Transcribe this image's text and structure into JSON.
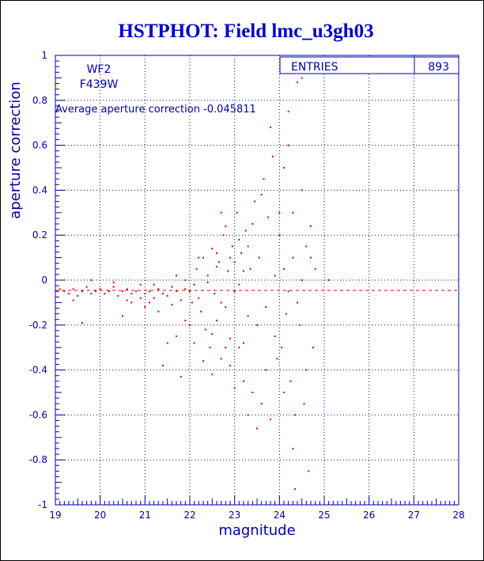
{
  "chart_data": {
    "type": "scatter",
    "title": "HSTPHOT: Field lmc_u3gh03",
    "xlabel": "magnitude",
    "ylabel": "aperture correction",
    "xlim": [
      19,
      28
    ],
    "ylim": [
      -1,
      1
    ],
    "x_ticks": [
      "19",
      "20",
      "21",
      "22",
      "23",
      "24",
      "25",
      "26",
      "27",
      "28"
    ],
    "y_ticks": [
      "-1",
      "-0.8",
      "-0.6",
      "-0.4",
      "-0.2",
      "0",
      "0.2",
      "0.4",
      "0.6",
      "0.8",
      "1"
    ],
    "grid": true,
    "annotations": {
      "chip": "WF2",
      "filter": "F439W",
      "average_text": "Average aperture correction -0.045811"
    },
    "stats": {
      "entries_label": "ENTRIES",
      "entries_value": "893"
    },
    "average_line_y": -0.045811,
    "colors": {
      "points": "#dd0000",
      "axes": "#0000aa",
      "title": "#0000cc"
    },
    "series": [
      {
        "points": [
          [
            19.1,
            -0.04
          ],
          [
            19.2,
            -0.05
          ],
          [
            19.3,
            -0.06
          ],
          [
            19.4,
            -0.04
          ],
          [
            19.5,
            -0.07
          ],
          [
            19.6,
            -0.05
          ],
          [
            19.7,
            -0.03
          ],
          [
            19.8,
            -0.06
          ],
          [
            19.9,
            -0.05
          ],
          [
            20.0,
            -0.04
          ],
          [
            20.1,
            -0.06
          ],
          [
            20.2,
            -0.05
          ],
          [
            20.3,
            -0.03
          ],
          [
            20.4,
            -0.07
          ],
          [
            20.5,
            -0.05
          ],
          [
            20.6,
            -0.04
          ],
          [
            20.7,
            -0.06
          ],
          [
            20.8,
            -0.05
          ],
          [
            20.9,
            -0.02
          ],
          [
            21.0,
            -0.06
          ],
          [
            21.1,
            -0.05
          ],
          [
            21.2,
            -0.08
          ],
          [
            21.3,
            -0.04
          ],
          [
            21.4,
            -0.06
          ],
          [
            21.5,
            -0.07
          ],
          [
            21.6,
            -0.03
          ],
          [
            21.7,
            -0.05
          ],
          [
            21.8,
            -0.09
          ],
          [
            21.9,
            -0.04
          ],
          [
            19.4,
            -0.09
          ],
          [
            19.6,
            -0.19
          ],
          [
            19.8,
            0.0
          ],
          [
            20.3,
            -0.01
          ],
          [
            20.5,
            -0.16
          ],
          [
            20.6,
            -0.09
          ],
          [
            20.7,
            -0.1
          ],
          [
            20.9,
            -0.08
          ],
          [
            21.0,
            -0.12
          ],
          [
            21.1,
            -0.1
          ],
          [
            21.2,
            -0.02
          ],
          [
            21.3,
            -0.14
          ],
          [
            21.4,
            -0.38
          ],
          [
            21.5,
            -0.28
          ],
          [
            21.6,
            -0.11
          ],
          [
            21.7,
            -0.25
          ],
          [
            21.8,
            -0.43
          ],
          [
            21.9,
            -0.18
          ],
          [
            21.7,
            0.02
          ],
          [
            21.9,
            0.0
          ],
          [
            22.0,
            -0.05
          ],
          [
            22.05,
            -0.1
          ],
          [
            22.1,
            -0.02
          ],
          [
            22.15,
            0.05
          ],
          [
            22.2,
            -0.08
          ],
          [
            22.25,
            -0.14
          ],
          [
            22.3,
            0.1
          ],
          [
            22.35,
            -0.22
          ],
          [
            22.4,
            0.02
          ],
          [
            22.45,
            -0.3
          ],
          [
            22.5,
            0.14
          ],
          [
            22.55,
            -0.06
          ],
          [
            22.6,
            -0.18
          ],
          [
            22.65,
            0.08
          ],
          [
            22.7,
            -0.35
          ],
          [
            22.75,
            0.2
          ],
          [
            22.8,
            -0.12
          ],
          [
            22.85,
            0.04
          ],
          [
            22.9,
            -0.26
          ],
          [
            22.95,
            0.15
          ],
          [
            22.0,
            -0.2
          ],
          [
            22.1,
            -0.28
          ],
          [
            22.2,
            0.1
          ],
          [
            22.3,
            -0.36
          ],
          [
            22.4,
            -0.01
          ],
          [
            22.5,
            -0.24
          ],
          [
            22.6,
            0.06
          ],
          [
            22.7,
            -0.1
          ],
          [
            22.8,
            0.24
          ],
          [
            22.9,
            0.1
          ],
          [
            23.0,
            -0.05
          ],
          [
            23.05,
            0.3
          ],
          [
            23.1,
            -0.3
          ],
          [
            23.15,
            0.12
          ],
          [
            23.2,
            -0.45
          ],
          [
            23.25,
            0.22
          ],
          [
            23.3,
            -0.16
          ],
          [
            23.35,
            0.05
          ],
          [
            23.4,
            -0.5
          ],
          [
            23.45,
            0.35
          ],
          [
            23.5,
            -0.2
          ],
          [
            23.55,
            0.1
          ],
          [
            23.6,
            -0.55
          ],
          [
            23.65,
            0.45
          ],
          [
            23.7,
            -0.12
          ],
          [
            23.75,
            0.28
          ],
          [
            23.8,
            -0.62
          ],
          [
            23.85,
            0.55
          ],
          [
            23.9,
            0.02
          ],
          [
            23.95,
            -0.35
          ],
          [
            23.0,
            -0.48
          ],
          [
            23.1,
            0.18
          ],
          [
            23.2,
            -0.28
          ],
          [
            23.3,
            -0.6
          ],
          [
            23.4,
            0.25
          ],
          [
            23.5,
            -0.66
          ],
          [
            23.6,
            0.38
          ],
          [
            23.7,
            -0.4
          ],
          [
            23.8,
            0.68
          ],
          [
            23.9,
            -0.25
          ],
          [
            24.0,
            0.3
          ],
          [
            24.05,
            -0.3
          ],
          [
            24.1,
            0.5
          ],
          [
            24.15,
            -0.15
          ],
          [
            24.2,
            0.75
          ],
          [
            24.25,
            -0.45
          ],
          [
            24.3,
            0.1
          ],
          [
            24.35,
            -0.6
          ],
          [
            24.4,
            0.88
          ],
          [
            24.45,
            -0.2
          ],
          [
            24.5,
            0.4
          ],
          [
            24.55,
            -0.55
          ],
          [
            24.6,
            0.15
          ],
          [
            24.65,
            -0.85
          ],
          [
            24.7,
            0.24
          ],
          [
            24.75,
            -0.3
          ],
          [
            24.8,
            0.05
          ],
          [
            24.35,
            -0.93
          ],
          [
            24.5,
            0.9
          ],
          [
            24.3,
            -0.75
          ],
          [
            24.0,
            0.2
          ],
          [
            24.1,
            -0.5
          ],
          [
            24.2,
            0.6
          ],
          [
            24.3,
            0.3
          ],
          [
            24.4,
            -0.1
          ],
          [
            24.5,
            0.0
          ],
          [
            24.6,
            -0.4
          ],
          [
            24.7,
            0.1
          ],
          [
            24.2,
            -0.05
          ],
          [
            24.1,
            0.05
          ],
          [
            25.1,
            0.0
          ],
          [
            22.5,
            -0.42
          ],
          [
            22.6,
            0.12
          ],
          [
            22.7,
            0.3
          ],
          [
            22.8,
            -0.3
          ],
          [
            22.9,
            -0.38
          ],
          [
            23.0,
            0.08
          ],
          [
            23.1,
            -0.02
          ],
          [
            23.2,
            0.04
          ],
          [
            23.3,
            0.15
          ]
        ]
      }
    ]
  }
}
